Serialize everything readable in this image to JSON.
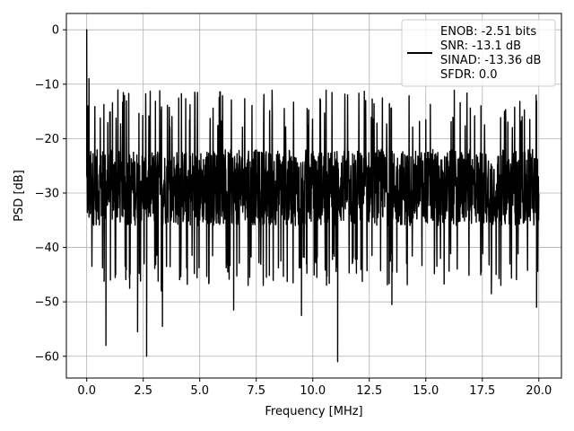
{
  "chart_data": {
    "type": "line",
    "title": "",
    "xlabel": "Frequency [MHz]",
    "ylabel": "PSD [dB]",
    "xlim": [
      -0.9,
      21.0
    ],
    "ylim": [
      -64.0,
      3.0
    ],
    "xticks": [
      0.0,
      2.5,
      5.0,
      7.5,
      10.0,
      12.5,
      15.0,
      17.5,
      20.0
    ],
    "xtick_labels": [
      "0.0",
      "2.5",
      "5.0",
      "7.5",
      "10.0",
      "12.5",
      "15.0",
      "17.5",
      "20.0"
    ],
    "yticks": [
      0,
      -10,
      -20,
      -30,
      -40,
      -50,
      -60
    ],
    "ytick_labels": [
      "0",
      "−10",
      "−20",
      "−30",
      "−40",
      "−50",
      "−60"
    ],
    "grid": true,
    "legend_position": "top-right",
    "legend_lines": [
      "ENOB: -2.51 bits",
      "SNR: -13.1 dB",
      "SINAD: -13.36 dB",
      "SFDR: 0.0"
    ],
    "series": [
      {
        "color": "#000000",
        "noise_floor": {
          "x_range": [
            0.0,
            20.0
          ],
          "typical_range": [
            -36,
            -22
          ],
          "upper_excursion": -15,
          "lower_excursion": -45
        },
        "peaks": [
          {
            "x": 0.0,
            "y": 0.0
          },
          {
            "x": 0.05,
            "y": -14.0
          },
          {
            "x": 0.1,
            "y": -9.0
          }
        ],
        "dips": [
          {
            "x": 0.85,
            "y": -58.0
          },
          {
            "x": 1.05,
            "y": -46.0
          },
          {
            "x": 1.9,
            "y": -47.5
          },
          {
            "x": 2.25,
            "y": -55.5
          },
          {
            "x": 2.65,
            "y": -60.0
          },
          {
            "x": 3.3,
            "y": -48.0
          },
          {
            "x": 3.35,
            "y": -54.5
          },
          {
            "x": 6.5,
            "y": -51.5
          },
          {
            "x": 9.5,
            "y": -52.5
          },
          {
            "x": 11.1,
            "y": -61.0
          },
          {
            "x": 13.5,
            "y": -50.5
          },
          {
            "x": 17.9,
            "y": -48.5
          },
          {
            "x": 19.9,
            "y": -51.0
          }
        ]
      }
    ]
  },
  "colors": {
    "series": "#000000",
    "grid": "#b0b0b0",
    "axes": "#000000",
    "legend_border": "#cccccc"
  }
}
